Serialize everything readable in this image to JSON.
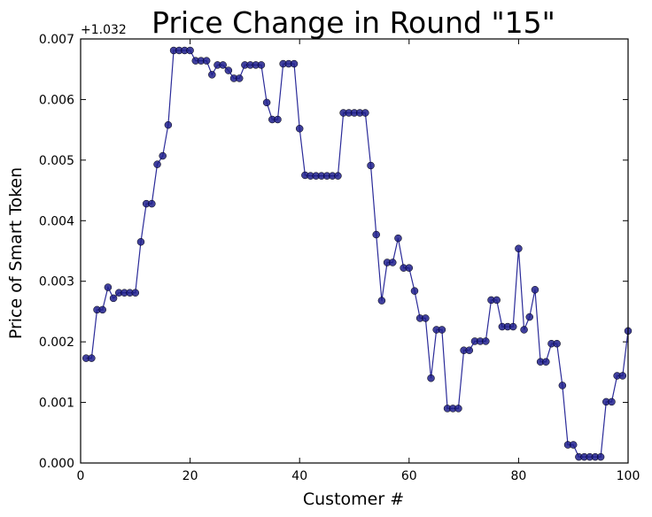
{
  "chart_data": {
    "type": "line",
    "title": "Price Change in Round \"15\"",
    "xlabel": "Customer #",
    "ylabel": "Price of Smart Token",
    "offset_label": "+1.032",
    "xlim": [
      0,
      100
    ],
    "ylim": [
      0.0,
      0.007
    ],
    "xticks": [
      0,
      20,
      40,
      60,
      80,
      100
    ],
    "yticks": [
      0.0,
      0.001,
      0.002,
      0.003,
      0.004,
      0.005,
      0.006,
      0.007
    ],
    "xtick_labels": [
      "0",
      "20",
      "40",
      "60",
      "80",
      "100"
    ],
    "ytick_labels": [
      "0.000",
      "0.001",
      "0.002",
      "0.003",
      "0.004",
      "0.005",
      "0.006",
      "0.007"
    ],
    "grid": false,
    "line_color": "#2b2b99",
    "marker_color": "#1f1f8c",
    "series": [
      {
        "x": [
          1,
          2,
          3,
          4,
          5,
          6,
          7,
          8,
          9,
          10,
          11,
          12,
          13,
          14,
          15,
          16,
          17,
          18,
          19,
          20,
          21,
          22,
          23,
          24,
          25,
          26,
          27,
          28,
          29,
          30,
          31,
          32,
          33,
          34,
          35,
          36,
          37,
          38,
          39,
          40,
          41,
          42,
          43,
          44,
          45,
          46,
          47,
          48,
          49,
          50,
          51,
          52,
          53,
          54,
          55,
          56,
          57,
          58,
          59,
          60,
          61,
          62,
          63,
          64,
          65,
          66,
          67,
          68,
          69,
          70,
          71,
          72,
          73,
          74,
          75,
          76,
          77,
          78,
          79,
          80,
          81,
          82,
          83,
          84,
          85,
          86,
          87,
          88,
          89,
          90,
          91,
          92,
          93,
          94,
          95,
          96,
          97,
          98,
          99,
          100
        ],
        "values": [
          0.00173,
          0.00173,
          0.00253,
          0.00253,
          0.0029,
          0.00272,
          0.00281,
          0.00281,
          0.00281,
          0.00281,
          0.00365,
          0.00428,
          0.00428,
          0.00493,
          0.00507,
          0.00558,
          0.00681,
          0.00681,
          0.00681,
          0.00681,
          0.00664,
          0.00664,
          0.00664,
          0.00641,
          0.00657,
          0.00657,
          0.00648,
          0.00635,
          0.00635,
          0.00657,
          0.00657,
          0.00657,
          0.00657,
          0.00595,
          0.00567,
          0.00567,
          0.00659,
          0.00659,
          0.00659,
          0.00552,
          0.00475,
          0.00474,
          0.00474,
          0.00474,
          0.00474,
          0.00474,
          0.00474,
          0.00578,
          0.00578,
          0.00578,
          0.00578,
          0.00578,
          0.00491,
          0.00377,
          0.00268,
          0.00331,
          0.00331,
          0.00371,
          0.00322,
          0.00322,
          0.00284,
          0.00239,
          0.00239,
          0.0014,
          0.0022,
          0.0022,
          0.0009,
          0.0009,
          0.0009,
          0.00186,
          0.00186,
          0.00201,
          0.00201,
          0.00201,
          0.00269,
          0.00269,
          0.00225,
          0.00225,
          0.00225,
          0.00354,
          0.0022,
          0.00241,
          0.00286,
          0.00167,
          0.00167,
          0.00197,
          0.00197,
          0.00128,
          0.0003,
          0.0003,
          0.0001,
          0.0001,
          0.0001,
          0.0001,
          0.0001,
          0.00101,
          0.00101,
          0.00144,
          0.00144,
          0.00218
        ]
      }
    ]
  }
}
